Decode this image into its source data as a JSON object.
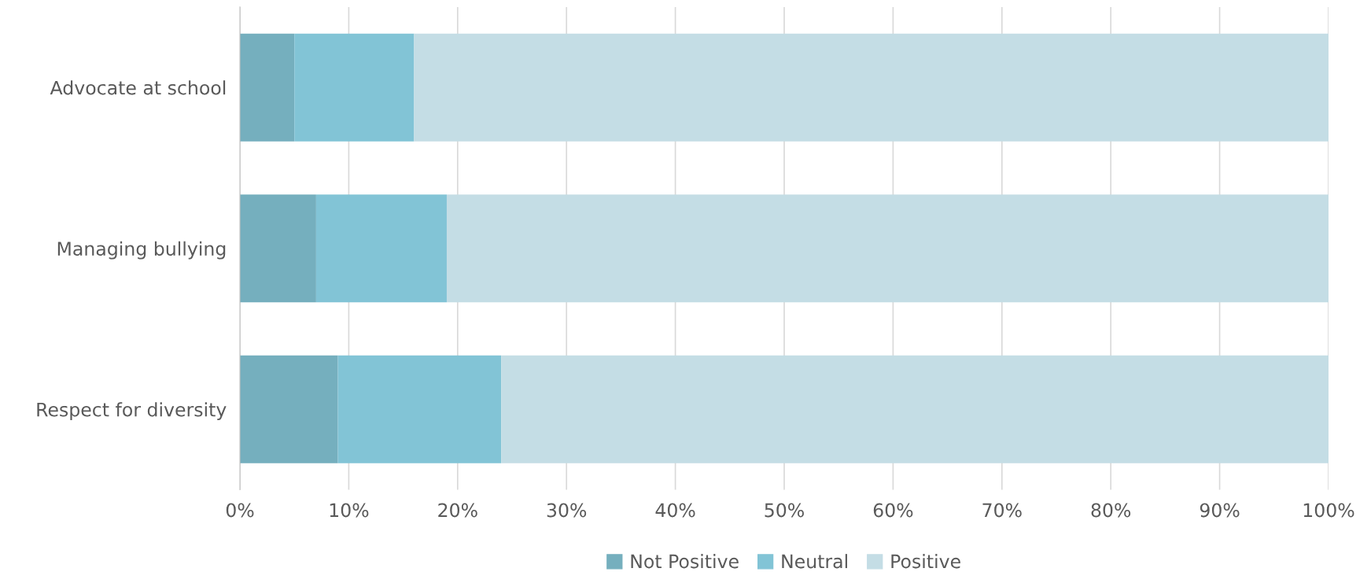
{
  "chart_data": {
    "type": "bar",
    "orientation": "horizontal",
    "stacked": true,
    "categories": [
      "Advocate at school",
      "Managing bullying",
      "Respect for diversity"
    ],
    "series": [
      {
        "name": "Not Positive",
        "color": "#75afbe",
        "values": [
          5,
          7,
          9
        ]
      },
      {
        "name": "Neutral",
        "color": "#82c4d6",
        "values": [
          11,
          12,
          15
        ]
      },
      {
        "name": "Positive",
        "color": "#c4dde5",
        "values": [
          84,
          81,
          76
        ]
      }
    ],
    "xlim": [
      0,
      100
    ],
    "xticks": [
      {
        "value": 0,
        "label": "0%"
      },
      {
        "value": 10,
        "label": "10%"
      },
      {
        "value": 20,
        "label": "20%"
      },
      {
        "value": 30,
        "label": "30%"
      },
      {
        "value": 40,
        "label": "40%"
      },
      {
        "value": 50,
        "label": "50%"
      },
      {
        "value": 60,
        "label": "60%"
      },
      {
        "value": 70,
        "label": "70%"
      },
      {
        "value": 80,
        "label": "80%"
      },
      {
        "value": 90,
        "label": "90%"
      },
      {
        "value": 100,
        "label": "100%"
      }
    ],
    "grid": "x",
    "legend": "bottom"
  }
}
